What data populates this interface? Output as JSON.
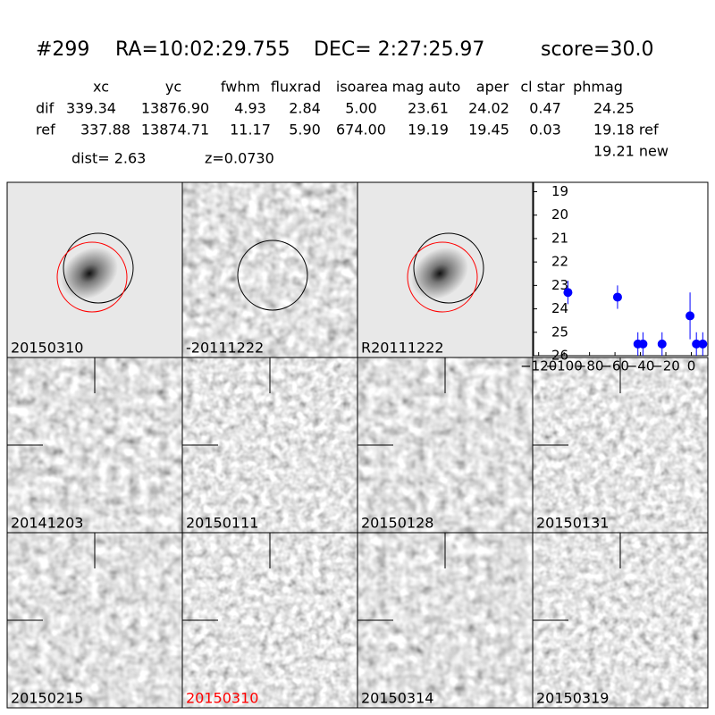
{
  "header": {
    "id": "#299",
    "ra": "RA=10:02:29.755",
    "dec": "DEC= 2:27:25.97",
    "score": "score=30.0"
  },
  "table": {
    "columns": [
      "xc",
      "yc",
      "fwhm",
      "fluxrad",
      "isoarea",
      "mag auto",
      "aper",
      "cl star",
      "phmag"
    ],
    "rows": [
      [
        "dif",
        "339.34",
        "13876.90",
        "4.93",
        "2.84",
        "5.00",
        "23.61",
        "24.02",
        "0.47",
        "24.25"
      ],
      [
        "ref",
        "337.88",
        "13874.71",
        "11.17",
        "5.90",
        "674.00",
        "19.19",
        "19.45",
        "0.03",
        "19.18 ref"
      ]
    ],
    "extra": "19.21 new"
  },
  "dist": "dist=  2.63",
  "z": "z=0.0730",
  "panels": [
    {
      "label": "20150310"
    },
    {
      "label": "-20111222"
    },
    {
      "label": "R20111222"
    },
    {
      "label": "20141203"
    },
    {
      "label": "20150111"
    },
    {
      "label": "20150128"
    },
    {
      "label": "20150131"
    },
    {
      "label": "20150215"
    },
    {
      "label": "20150310",
      "color": "#ff0000"
    },
    {
      "label": "20150314"
    },
    {
      "label": "20150319"
    }
  ],
  "chart_data": {
    "type": "scatter",
    "color": "#0000ff",
    "x": [
      -97,
      -58,
      -42,
      -38,
      -23,
      -1,
      4,
      9
    ],
    "values": [
      23.3,
      23.5,
      25.5,
      25.5,
      25.5,
      24.3,
      25.5,
      25.5
    ],
    "errors": [
      0.5,
      0.5,
      0.5,
      0.5,
      0.5,
      1.0,
      0.5,
      0.5
    ],
    "xlim": [
      -124,
      13
    ],
    "ylim": [
      26,
      18.6
    ],
    "xticks": [
      {
        "value": -120,
        "label": "−120"
      },
      {
        "value": -100,
        "label": "−100"
      },
      {
        "value": -80,
        "label": "−80"
      },
      {
        "value": -60,
        "label": "−60"
      },
      {
        "value": -40,
        "label": "−40"
      },
      {
        "value": -20,
        "label": "−20"
      },
      0
    ],
    "yticks": [
      19,
      20,
      21,
      22,
      23,
      24,
      25,
      26
    ]
  }
}
